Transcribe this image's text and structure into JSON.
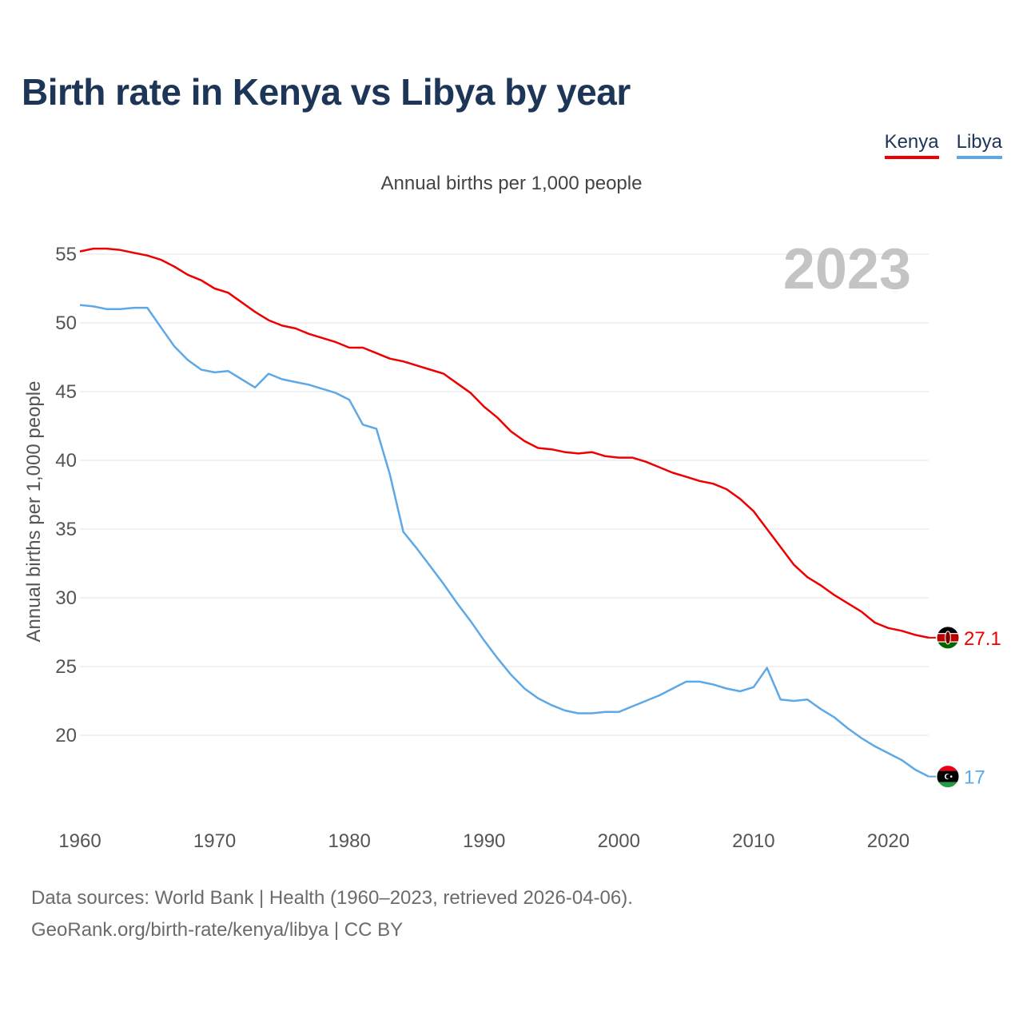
{
  "title": "Birth rate in Kenya vs Libya by year",
  "subtitle": "Annual births per 1,000 people",
  "watermark_year": "2023",
  "legend": [
    {
      "name": "Kenya",
      "color": "#ee0000"
    },
    {
      "name": "Libya",
      "color": "#5da8e6"
    }
  ],
  "footer": {
    "line1": "Data sources: World Bank | Health (1960–2023, retrieved 2026-04-06).",
    "line2": "GeoRank.org/birth-rate/kenya/libya | CC BY"
  },
  "chart_data": {
    "type": "line",
    "ylabel": "Annual births per 1,000 people",
    "xlabel": "",
    "xlim": [
      1960,
      2023
    ],
    "ylim": [
      15,
      57
    ],
    "x_ticks": [
      1960,
      1970,
      1980,
      1990,
      2000,
      2010,
      2020
    ],
    "y_ticks": [
      20,
      25,
      30,
      35,
      40,
      45,
      50,
      55
    ],
    "grid": true,
    "end_labels": [
      "27.1",
      "17"
    ],
    "x": [
      1960,
      1961,
      1962,
      1963,
      1964,
      1965,
      1966,
      1967,
      1968,
      1969,
      1970,
      1971,
      1972,
      1973,
      1974,
      1975,
      1976,
      1977,
      1978,
      1979,
      1980,
      1981,
      1982,
      1983,
      1984,
      1985,
      1986,
      1987,
      1988,
      1989,
      1990,
      1991,
      1992,
      1993,
      1994,
      1995,
      1996,
      1997,
      1998,
      1999,
      2000,
      2001,
      2002,
      2003,
      2004,
      2005,
      2006,
      2007,
      2008,
      2009,
      2010,
      2011,
      2012,
      2013,
      2014,
      2015,
      2016,
      2017,
      2018,
      2019,
      2020,
      2021,
      2022,
      2023
    ],
    "series": [
      {
        "name": "Kenya",
        "color": "#ee0000",
        "values": [
          55.2,
          55.4,
          55.4,
          55.3,
          55.1,
          54.9,
          54.6,
          54.1,
          53.5,
          53.1,
          52.5,
          52.2,
          51.5,
          50.8,
          50.2,
          49.8,
          49.6,
          49.2,
          48.9,
          48.6,
          48.2,
          48.2,
          47.8,
          47.4,
          47.2,
          46.9,
          46.6,
          46.3,
          45.6,
          44.9,
          43.9,
          43.1,
          42.1,
          41.4,
          40.9,
          40.8,
          40.6,
          40.5,
          40.6,
          40.3,
          40.2,
          40.2,
          39.9,
          39.5,
          39.1,
          38.8,
          38.5,
          38.3,
          37.9,
          37.2,
          36.3,
          35.0,
          33.7,
          32.4,
          31.5,
          30.9,
          30.2,
          29.6,
          29.0,
          28.2,
          27.8,
          27.6,
          27.3,
          27.1
        ]
      },
      {
        "name": "Libya",
        "color": "#5da8e6",
        "values": [
          51.3,
          51.2,
          51.0,
          51.0,
          51.1,
          51.1,
          49.7,
          48.3,
          47.3,
          46.6,
          46.4,
          46.5,
          45.9,
          45.3,
          46.3,
          45.9,
          45.7,
          45.5,
          45.2,
          44.9,
          44.4,
          42.6,
          42.3,
          39.0,
          34.8,
          33.6,
          32.3,
          31.0,
          29.6,
          28.3,
          26.9,
          25.6,
          24.4,
          23.4,
          22.7,
          22.2,
          21.8,
          21.6,
          21.6,
          21.7,
          21.7,
          22.1,
          22.5,
          22.9,
          23.4,
          23.9,
          23.9,
          23.7,
          23.4,
          23.2,
          23.5,
          24.9,
          22.6,
          22.5,
          22.6,
          21.9,
          21.3,
          20.5,
          19.8,
          19.2,
          18.7,
          18.2,
          17.5,
          17.0
        ]
      }
    ]
  }
}
